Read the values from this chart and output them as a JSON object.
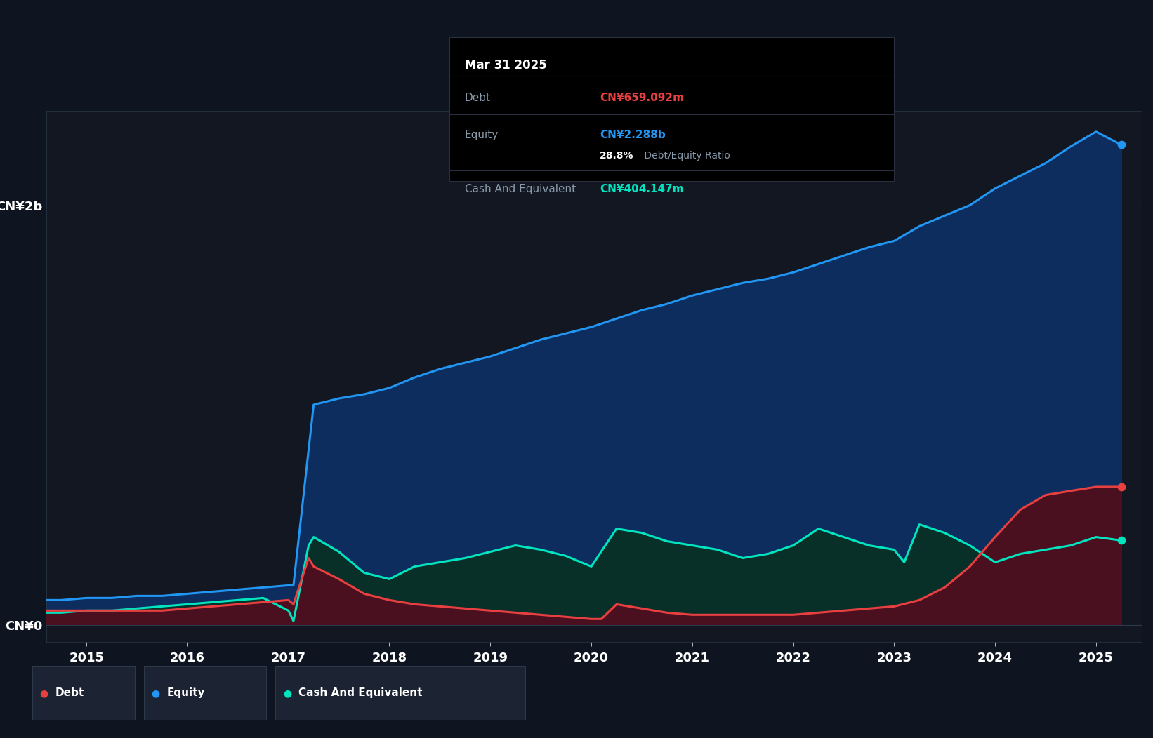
{
  "background_color": "#131722",
  "plot_bg_color": "#131722",
  "outer_bg_color": "#0e1420",
  "ylabel_top": "CN¥2b",
  "ylabel_bottom": "CN¥0",
  "xlim_start": 2014.6,
  "xlim_end": 2025.45,
  "ylim_min": -0.08,
  "ylim_max": 2.45,
  "grid_color": "#1e2a3a",
  "axis_color": "#2a3a4a",
  "text_color": "#ffffff",
  "label_color": "#8899aa",
  "x_ticks": [
    2015,
    2016,
    2017,
    2018,
    2019,
    2020,
    2021,
    2022,
    2023,
    2024,
    2025
  ],
  "y_ticks_labels": [
    "CN¥0",
    "CN¥2b"
  ],
  "y_ticks_values": [
    0.0,
    2.0
  ],
  "equity_color": "#2196f3",
  "equity_fill": "#0d2d5e",
  "debt_color": "#e84040",
  "debt_fill": "#4a1020",
  "cash_color": "#00e5c0",
  "cash_fill": "#093028",
  "tooltip_bg": "#000000",
  "tooltip_border": "#2a3040",
  "tooltip_title": "Mar 31 2025",
  "tooltip_debt_label": "Debt",
  "tooltip_debt_value": "CN¥659.092m",
  "tooltip_equity_label": "Equity",
  "tooltip_equity_value": "CN¥2.288b",
  "tooltip_ratio": "28.8% Debt/Equity Ratio",
  "tooltip_ratio_pct": "28.8%",
  "tooltip_ratio_text": " Debt/Equity Ratio",
  "tooltip_cash_label": "Cash And Equivalent",
  "tooltip_cash_value": "CN¥404.147m",
  "legend_items": [
    "Debt",
    "Equity",
    "Cash And Equivalent"
  ],
  "legend_colors": [
    "#e84040",
    "#2196f3",
    "#00e5c0"
  ],
  "legend_bg": "#1c2333",
  "legend_border": "#2a3a4a",
  "equity_x": [
    2014.6,
    2014.75,
    2015.0,
    2015.25,
    2015.5,
    2015.75,
    2016.0,
    2016.25,
    2016.5,
    2016.75,
    2017.0,
    2017.05,
    2017.25,
    2017.5,
    2017.75,
    2018.0,
    2018.25,
    2018.5,
    2018.75,
    2019.0,
    2019.25,
    2019.5,
    2019.75,
    2020.0,
    2020.25,
    2020.5,
    2020.75,
    2021.0,
    2021.25,
    2021.5,
    2021.75,
    2022.0,
    2022.25,
    2022.5,
    2022.75,
    2023.0,
    2023.25,
    2023.5,
    2023.75,
    2024.0,
    2024.25,
    2024.5,
    2024.75,
    2025.0,
    2025.25
  ],
  "equity_y": [
    0.12,
    0.12,
    0.13,
    0.13,
    0.14,
    0.14,
    0.15,
    0.16,
    0.17,
    0.18,
    0.19,
    0.19,
    1.05,
    1.08,
    1.1,
    1.13,
    1.18,
    1.22,
    1.25,
    1.28,
    1.32,
    1.36,
    1.39,
    1.42,
    1.46,
    1.5,
    1.53,
    1.57,
    1.6,
    1.63,
    1.65,
    1.68,
    1.72,
    1.76,
    1.8,
    1.83,
    1.9,
    1.95,
    2.0,
    2.08,
    2.14,
    2.2,
    2.28,
    2.35,
    2.288
  ],
  "debt_x": [
    2014.6,
    2014.75,
    2015.0,
    2015.25,
    2015.5,
    2015.75,
    2016.0,
    2016.25,
    2016.5,
    2016.75,
    2017.0,
    2017.05,
    2017.2,
    2017.25,
    2017.5,
    2017.75,
    2018.0,
    2018.25,
    2018.5,
    2018.75,
    2019.0,
    2019.25,
    2019.5,
    2019.75,
    2020.0,
    2020.1,
    2020.25,
    2020.5,
    2020.75,
    2021.0,
    2021.25,
    2021.5,
    2021.75,
    2022.0,
    2022.25,
    2022.5,
    2022.75,
    2023.0,
    2023.25,
    2023.5,
    2023.75,
    2024.0,
    2024.25,
    2024.5,
    2024.75,
    2025.0,
    2025.25
  ],
  "debt_y": [
    0.07,
    0.07,
    0.07,
    0.07,
    0.07,
    0.07,
    0.08,
    0.09,
    0.1,
    0.11,
    0.12,
    0.1,
    0.32,
    0.28,
    0.22,
    0.15,
    0.12,
    0.1,
    0.09,
    0.08,
    0.07,
    0.06,
    0.05,
    0.04,
    0.03,
    0.03,
    0.1,
    0.08,
    0.06,
    0.05,
    0.05,
    0.05,
    0.05,
    0.05,
    0.06,
    0.07,
    0.08,
    0.09,
    0.12,
    0.18,
    0.28,
    0.42,
    0.55,
    0.62,
    0.64,
    0.659,
    0.659
  ],
  "cash_x": [
    2014.6,
    2014.75,
    2015.0,
    2015.25,
    2015.5,
    2015.75,
    2016.0,
    2016.25,
    2016.5,
    2016.75,
    2017.0,
    2017.05,
    2017.2,
    2017.25,
    2017.5,
    2017.75,
    2018.0,
    2018.25,
    2018.5,
    2018.75,
    2019.0,
    2019.25,
    2019.5,
    2019.75,
    2020.0,
    2020.25,
    2020.5,
    2020.75,
    2021.0,
    2021.25,
    2021.5,
    2021.75,
    2022.0,
    2022.25,
    2022.5,
    2022.75,
    2023.0,
    2023.1,
    2023.25,
    2023.5,
    2023.75,
    2024.0,
    2024.25,
    2024.5,
    2024.75,
    2025.0,
    2025.25
  ],
  "cash_y": [
    0.06,
    0.06,
    0.07,
    0.07,
    0.08,
    0.09,
    0.1,
    0.11,
    0.12,
    0.13,
    0.07,
    0.02,
    0.38,
    0.42,
    0.35,
    0.25,
    0.22,
    0.28,
    0.3,
    0.32,
    0.35,
    0.38,
    0.36,
    0.33,
    0.28,
    0.46,
    0.44,
    0.4,
    0.38,
    0.36,
    0.32,
    0.34,
    0.38,
    0.46,
    0.42,
    0.38,
    0.36,
    0.3,
    0.48,
    0.44,
    0.38,
    0.3,
    0.34,
    0.36,
    0.38,
    0.42,
    0.404
  ]
}
